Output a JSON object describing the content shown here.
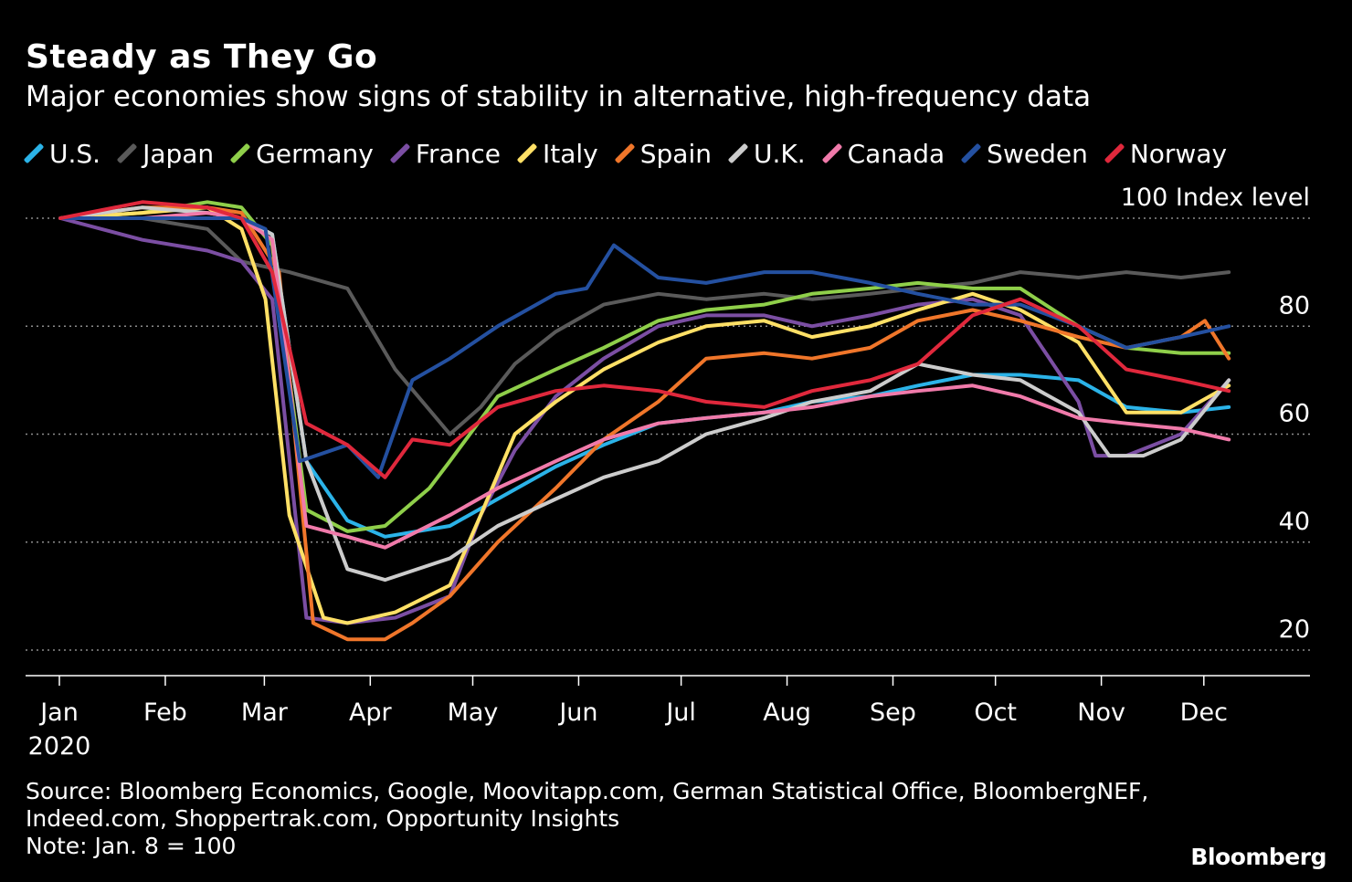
{
  "title": "Steady as They Go",
  "subtitle": "Major economies show signs of stability in alternative, high-frequency data",
  "source": "Source: Bloomberg Economics, Google, Moovitapp.com, German Statistical Office, BloombergNEF,",
  "source2": "Indeed.com, Shoppertrak.com, Opportunity Insights",
  "note": "Note: Jan. 8 = 100",
  "brand": "Bloomberg",
  "colors": {
    "background": "#000000",
    "grid": "#8c8c8c",
    "text": "#ffffff"
  },
  "chart_data": {
    "type": "line",
    "ylabel": "Index level",
    "ylim": [
      20,
      100
    ],
    "yticks": [
      20,
      40,
      60,
      80,
      100
    ],
    "y_unit_label": "100 Index level",
    "x_ticks": [
      "Jan",
      "Feb",
      "Mar",
      "Apr",
      "May",
      "Jun",
      "Jul",
      "Aug",
      "Sep",
      "Oct",
      "Nov",
      "Dec"
    ],
    "x_year_label": "2020",
    "x_range": [
      "2020-01-01",
      "2020-12-31"
    ],
    "legend_position": "top",
    "grid": "horizontal dotted",
    "series": [
      {
        "name": "U.S.",
        "color": "#2bb3e8",
        "x": [
          "2020-01-08",
          "2020-02-01",
          "2020-03-01",
          "2020-03-10",
          "2020-03-20",
          "2020-04-01",
          "2020-04-12",
          "2020-05-01",
          "2020-05-15",
          "2020-06-01",
          "2020-06-15",
          "2020-07-01",
          "2020-07-15",
          "2020-08-01",
          "2020-08-15",
          "2020-09-01",
          "2020-09-15",
          "2020-10-01",
          "2020-10-15",
          "2020-11-01",
          "2020-11-15",
          "2020-12-01",
          "2020-12-15"
        ],
        "y": [
          100,
          100,
          100,
          97,
          55,
          44,
          41,
          43,
          48,
          54,
          58,
          62,
          63,
          64,
          66,
          67,
          69,
          71,
          71,
          70,
          65,
          64,
          65
        ]
      },
      {
        "name": "Japan",
        "color": "#5a5a5a",
        "x": [
          "2020-01-08",
          "2020-02-01",
          "2020-02-20",
          "2020-03-01",
          "2020-03-15",
          "2020-04-01",
          "2020-04-15",
          "2020-05-01",
          "2020-05-10",
          "2020-05-20",
          "2020-06-01",
          "2020-06-15",
          "2020-07-01",
          "2020-07-15",
          "2020-08-01",
          "2020-08-15",
          "2020-09-01",
          "2020-09-15",
          "2020-10-01",
          "2020-10-15",
          "2020-11-01",
          "2020-11-15",
          "2020-12-01",
          "2020-12-15"
        ],
        "y": [
          100,
          100,
          98,
          92,
          90,
          87,
          72,
          60,
          65,
          73,
          79,
          84,
          86,
          85,
          86,
          85,
          86,
          87,
          88,
          90,
          89,
          90,
          89,
          90
        ]
      },
      {
        "name": "Germany",
        "color": "#8fcf4a",
        "x": [
          "2020-01-08",
          "2020-02-01",
          "2020-02-20",
          "2020-03-01",
          "2020-03-10",
          "2020-03-20",
          "2020-04-01",
          "2020-04-12",
          "2020-04-25",
          "2020-05-01",
          "2020-05-15",
          "2020-06-01",
          "2020-06-15",
          "2020-07-01",
          "2020-07-15",
          "2020-08-01",
          "2020-08-15",
          "2020-09-01",
          "2020-09-15",
          "2020-10-01",
          "2020-10-15",
          "2020-11-01",
          "2020-11-15",
          "2020-12-01",
          "2020-12-15"
        ],
        "y": [
          100,
          101,
          103,
          102,
          95,
          46,
          42,
          43,
          50,
          55,
          67,
          72,
          76,
          81,
          83,
          84,
          86,
          87,
          88,
          87,
          87,
          80,
          76,
          75,
          75
        ]
      },
      {
        "name": "France",
        "color": "#7b4ea3",
        "x": [
          "2020-01-08",
          "2020-02-01",
          "2020-02-20",
          "2020-03-01",
          "2020-03-10",
          "2020-03-20",
          "2020-04-01",
          "2020-04-15",
          "2020-05-01",
          "2020-05-10",
          "2020-05-20",
          "2020-06-01",
          "2020-06-15",
          "2020-07-01",
          "2020-07-15",
          "2020-08-01",
          "2020-08-15",
          "2020-09-01",
          "2020-09-15",
          "2020-10-01",
          "2020-10-15",
          "2020-11-01",
          "2020-11-06",
          "2020-11-15",
          "2020-12-01",
          "2020-12-15"
        ],
        "y": [
          100,
          96,
          94,
          92,
          85,
          26,
          25,
          26,
          30,
          45,
          57,
          67,
          74,
          80,
          82,
          82,
          80,
          82,
          84,
          85,
          82,
          66,
          56,
          56,
          60,
          70
        ]
      },
      {
        "name": "Italy",
        "color": "#ffe066",
        "x": [
          "2020-01-08",
          "2020-02-01",
          "2020-02-20",
          "2020-03-01",
          "2020-03-08",
          "2020-03-15",
          "2020-03-25",
          "2020-04-01",
          "2020-04-15",
          "2020-05-01",
          "2020-05-10",
          "2020-05-20",
          "2020-06-01",
          "2020-06-15",
          "2020-07-01",
          "2020-07-15",
          "2020-08-01",
          "2020-08-15",
          "2020-09-01",
          "2020-09-15",
          "2020-10-01",
          "2020-10-15",
          "2020-11-01",
          "2020-11-15",
          "2020-12-01",
          "2020-12-15"
        ],
        "y": [
          100,
          101,
          102,
          98,
          85,
          45,
          26,
          25,
          27,
          32,
          45,
          60,
          66,
          72,
          77,
          80,
          81,
          78,
          80,
          83,
          86,
          83,
          77,
          64,
          64,
          69
        ]
      },
      {
        "name": "Spain",
        "color": "#f0762a",
        "x": [
          "2020-01-08",
          "2020-02-01",
          "2020-02-20",
          "2020-03-01",
          "2020-03-12",
          "2020-03-22",
          "2020-04-01",
          "2020-04-12",
          "2020-04-20",
          "2020-05-01",
          "2020-05-15",
          "2020-06-01",
          "2020-06-15",
          "2020-07-01",
          "2020-07-15",
          "2020-08-01",
          "2020-08-15",
          "2020-09-01",
          "2020-09-15",
          "2020-10-01",
          "2020-10-15",
          "2020-11-01",
          "2020-11-15",
          "2020-12-01",
          "2020-12-08",
          "2020-12-15"
        ],
        "y": [
          100,
          102,
          102,
          101,
          90,
          25,
          22,
          22,
          25,
          30,
          40,
          50,
          59,
          66,
          74,
          75,
          74,
          76,
          81,
          83,
          81,
          78,
          76,
          78,
          81,
          74
        ]
      },
      {
        "name": "U.K.",
        "color": "#cccccc",
        "x": [
          "2020-01-08",
          "2020-02-01",
          "2020-02-20",
          "2020-03-01",
          "2020-03-10",
          "2020-03-20",
          "2020-04-01",
          "2020-04-12",
          "2020-05-01",
          "2020-05-15",
          "2020-06-01",
          "2020-06-15",
          "2020-07-01",
          "2020-07-15",
          "2020-08-01",
          "2020-08-15",
          "2020-09-01",
          "2020-09-15",
          "2020-10-01",
          "2020-10-15",
          "2020-11-01",
          "2020-11-10",
          "2020-11-20",
          "2020-12-01",
          "2020-12-15"
        ],
        "y": [
          100,
          102,
          101,
          100,
          97,
          55,
          35,
          33,
          37,
          43,
          48,
          52,
          55,
          60,
          63,
          66,
          68,
          73,
          71,
          70,
          64,
          56,
          56,
          59,
          70
        ]
      },
      {
        "name": "Canada",
        "color": "#f07aaa",
        "x": [
          "2020-01-08",
          "2020-02-01",
          "2020-02-20",
          "2020-03-01",
          "2020-03-10",
          "2020-03-20",
          "2020-04-01",
          "2020-04-12",
          "2020-05-01",
          "2020-05-15",
          "2020-06-01",
          "2020-06-15",
          "2020-07-01",
          "2020-07-15",
          "2020-08-01",
          "2020-08-15",
          "2020-09-01",
          "2020-09-15",
          "2020-10-01",
          "2020-10-15",
          "2020-11-01",
          "2020-11-15",
          "2020-12-01",
          "2020-12-15"
        ],
        "y": [
          100,
          100,
          101,
          100,
          96,
          43,
          41,
          39,
          45,
          50,
          55,
          59,
          62,
          63,
          64,
          65,
          67,
          68,
          69,
          67,
          63,
          62,
          61,
          59
        ]
      },
      {
        "name": "Sweden",
        "color": "#2450a0",
        "x": [
          "2020-01-08",
          "2020-02-01",
          "2020-03-01",
          "2020-03-08",
          "2020-03-18",
          "2020-04-01",
          "2020-04-10",
          "2020-04-20",
          "2020-05-01",
          "2020-05-15",
          "2020-06-01",
          "2020-06-10",
          "2020-06-18",
          "2020-07-01",
          "2020-07-15",
          "2020-08-01",
          "2020-08-15",
          "2020-09-01",
          "2020-09-15",
          "2020-10-01",
          "2020-10-15",
          "2020-11-01",
          "2020-11-15",
          "2020-12-01",
          "2020-12-15"
        ],
        "y": [
          100,
          100,
          100,
          98,
          55,
          58,
          52,
          70,
          74,
          80,
          86,
          87,
          95,
          89,
          88,
          90,
          90,
          88,
          86,
          84,
          84,
          80,
          76,
          78,
          80
        ]
      },
      {
        "name": "Norway",
        "color": "#e0283c",
        "x": [
          "2020-01-08",
          "2020-02-01",
          "2020-02-20",
          "2020-03-01",
          "2020-03-10",
          "2020-03-20",
          "2020-04-01",
          "2020-04-12",
          "2020-04-20",
          "2020-05-01",
          "2020-05-15",
          "2020-06-01",
          "2020-06-15",
          "2020-07-01",
          "2020-07-15",
          "2020-08-01",
          "2020-08-15",
          "2020-09-01",
          "2020-09-15",
          "2020-10-01",
          "2020-10-15",
          "2020-11-01",
          "2020-11-15",
          "2020-12-01",
          "2020-12-15"
        ],
        "y": [
          100,
          103,
          102,
          100,
          90,
          62,
          58,
          52,
          59,
          58,
          65,
          68,
          69,
          68,
          66,
          65,
          68,
          70,
          73,
          82,
          85,
          80,
          72,
          70,
          68
        ]
      }
    ]
  }
}
